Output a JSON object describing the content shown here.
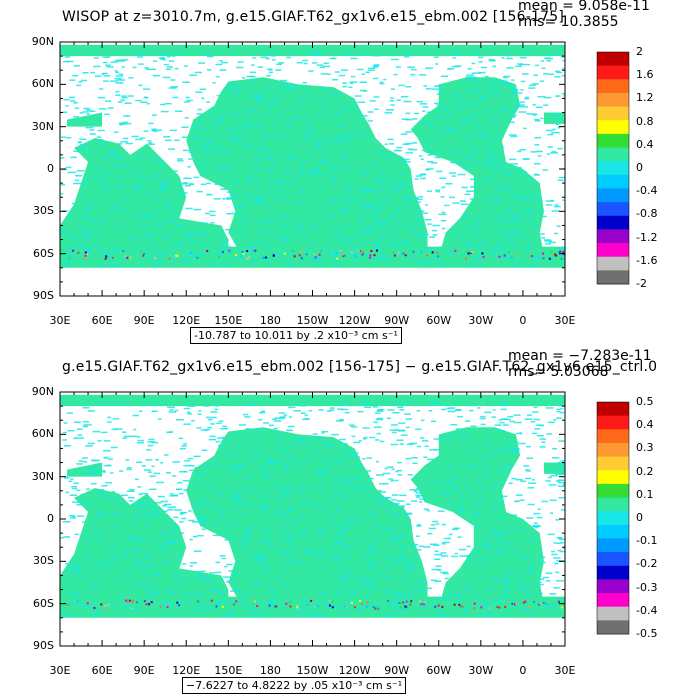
{
  "panels": [
    {
      "title": "WISOP at z=3010.7m, g.e15.GIAF.T62_gx1v6.e15_ebm.002 [156-175]",
      "mean": "mean = 9.058e-11",
      "rms": "rms= 10.3855",
      "range_text": "-10.787 to 10.011 by .2 x10⁻³ cm s⁻¹",
      "colorbar_labels": [
        "2",
        "1.6",
        "1.2",
        "0.8",
        "0.4",
        "0",
        "-0.4",
        "-0.8",
        "-1.2",
        "-1.6",
        "-2"
      ]
    },
    {
      "title": "g.e15.GIAF.T62_gx1v6.e15_ebm.002 [156-175] − g.e15.GIAF.T62_gx1v6.e15_ctrl.0",
      "mean": "mean = −7.283e-11",
      "rms": "rms= 5.03068",
      "range_text": "−7.6227 to 4.8222 by .05 x10⁻³ cm s⁻¹",
      "colorbar_labels": [
        "0.5",
        "0.4",
        "0.3",
        "0.2",
        "0.1",
        "0",
        "-0.1",
        "-0.2",
        "-0.3",
        "-0.4",
        "-0.5"
      ]
    }
  ],
  "lat_labels": [
    "90N",
    "60N",
    "30N",
    "0",
    "30S",
    "60S",
    "90S"
  ],
  "lon_labels": [
    "30E",
    "60E",
    "90E",
    "120E",
    "150E",
    "180",
    "150W",
    "120W",
    "90W",
    "60W",
    "30W",
    "0",
    "30E"
  ],
  "colors": {
    "ocean_main": "#33e8a0",
    "ocean_alt": "#19e6e6",
    "land": "#ffffff",
    "colorbar": [
      "#c00000",
      "#ff1a1a",
      "#ff6a1a",
      "#ff9933",
      "#ffcc33",
      "#ffff00",
      "#33dd33",
      "#33e8a0",
      "#19e6e6",
      "#00ccff",
      "#0099ff",
      "#1a55ff",
      "#0000cc",
      "#9900cc",
      "#ff00cc",
      "#c0c0c0",
      "#707070"
    ]
  }
}
